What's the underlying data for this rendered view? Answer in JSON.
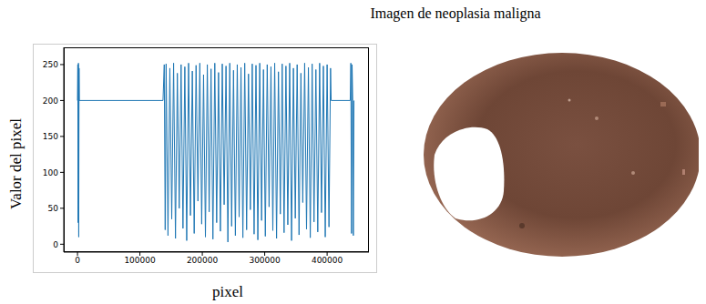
{
  "chart_data": {
    "type": "line",
    "title": "Imagen de neoplasia maligna",
    "xlabel": "pixel",
    "ylabel": "Valor del pixel",
    "color": "#1f77b4",
    "grid": false,
    "xlim": [
      -22000,
      467000
    ],
    "ylim": [
      -11,
      274
    ],
    "xticks": [
      0,
      100000,
      200000,
      300000,
      400000
    ],
    "yticks": [
      0,
      50,
      100,
      150,
      200,
      250
    ],
    "x": [
      0,
      500,
      1000,
      1500,
      2000,
      2500,
      3000,
      137000,
      139000,
      140500,
      142000,
      145000,
      148000,
      151000,
      154000,
      157000,
      160000,
      163000,
      166000,
      169000,
      172000,
      175000,
      178000,
      181000,
      184000,
      187000,
      190000,
      193000,
      196000,
      199000,
      202000,
      205000,
      208000,
      211000,
      214000,
      217000,
      220000,
      223000,
      226000,
      229000,
      232000,
      235000,
      238000,
      241000,
      244000,
      247000,
      250000,
      253000,
      256000,
      259000,
      262000,
      265000,
      268000,
      271000,
      274000,
      277000,
      280000,
      283000,
      286000,
      289000,
      292000,
      295000,
      298000,
      301000,
      304000,
      307000,
      310000,
      313000,
      316000,
      319000,
      322000,
      325000,
      328000,
      331000,
      334000,
      337000,
      340000,
      343000,
      346000,
      349000,
      352000,
      355000,
      358000,
      361000,
      364000,
      367000,
      370000,
      373000,
      376000,
      379000,
      382000,
      385000,
      388000,
      391000,
      394000,
      397000,
      400000,
      403000,
      405500,
      406500,
      437000,
      438000,
      439000,
      440000,
      441000,
      442000,
      443000
    ],
    "values": [
      200,
      250,
      30,
      252,
      10,
      245,
      200,
      200,
      250,
      20,
      251,
      12,
      245,
      35,
      252,
      8,
      238,
      50,
      250,
      22,
      247,
      5,
      252,
      40,
      241,
      15,
      249,
      60,
      252,
      28,
      236,
      10,
      250,
      45,
      244,
      7,
      252,
      30,
      239,
      18,
      251,
      55,
      248,
      3,
      252,
      25,
      242,
      12,
      250,
      38,
      246,
      9,
      252,
      20,
      237,
      48,
      251,
      14,
      249,
      6,
      252,
      33,
      243,
      11,
      250,
      52,
      247,
      19,
      252,
      8,
      240,
      42,
      251,
      16,
      248,
      27,
      252,
      5,
      245,
      36,
      250,
      13,
      238,
      58,
      252,
      21,
      246,
      9,
      251,
      31,
      243,
      17,
      252,
      44,
      248,
      10,
      250,
      24,
      245,
      200,
      200,
      252,
      15,
      250,
      200,
      12,
      200
    ]
  }
}
